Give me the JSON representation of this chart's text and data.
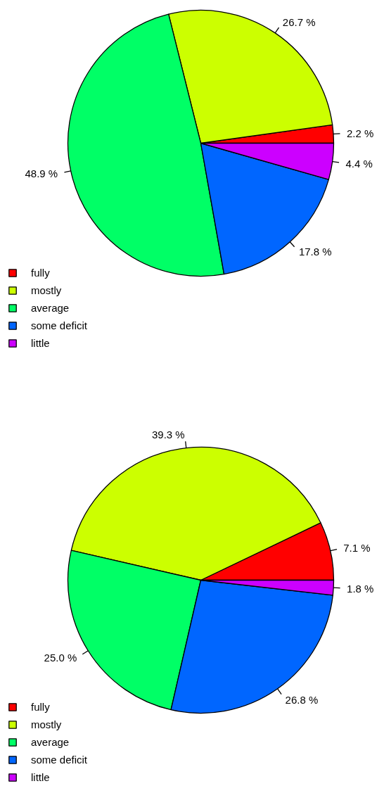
{
  "chart_data": [
    {
      "type": "pie",
      "categories": [
        "fully",
        "mostly",
        "average",
        "some deficit",
        "little"
      ],
      "values": [
        2.2,
        26.7,
        48.9,
        17.8,
        4.4
      ],
      "colors": [
        "#ff0000",
        "#ccff00",
        "#00ff66",
        "#0066ff",
        "#cc00ff"
      ],
      "value_labels": [
        "2.2 %",
        "26.7 %",
        "48.9 %",
        "17.8 %",
        "4.4 %"
      ],
      "legend": "bottom left"
    },
    {
      "type": "pie",
      "categories": [
        "fully",
        "mostly",
        "average",
        "some deficit",
        "little"
      ],
      "values": [
        7.1,
        39.3,
        25.0,
        26.8,
        1.8
      ],
      "colors": [
        "#ff0000",
        "#ccff00",
        "#00ff66",
        "#0066ff",
        "#cc00ff"
      ],
      "value_labels": [
        "7.1 %",
        "39.3 %",
        "25.0 %",
        "26.8 %",
        "1.8 %"
      ],
      "legend": "bottom left"
    }
  ]
}
